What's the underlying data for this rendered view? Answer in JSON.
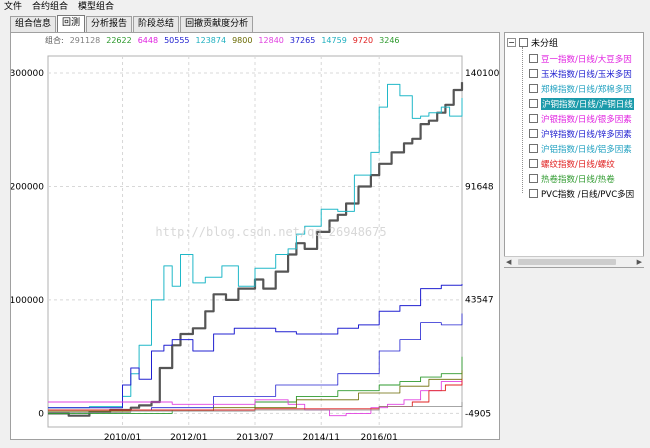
{
  "menu": [
    "文件",
    "合约组合",
    "模型组合"
  ],
  "tabs": [
    "组合信息",
    "回测",
    "分析报告",
    "阶段总结",
    "回撤贡献度分析"
  ],
  "active_tab": 1,
  "legend": {
    "label": "组合:",
    "values": [
      "291128",
      "22622",
      "6448",
      "50555",
      "123874",
      "9800",
      "12840",
      "37265",
      "14759",
      "9720",
      "3246"
    ],
    "colors": [
      "#808080",
      "#2e9a2e",
      "#e020e0",
      "#2020d0",
      "#20b0c0",
      "#6a6a00",
      "#e040e0",
      "#2020d0",
      "#20b0c0",
      "#e02020",
      "#2e9a2e"
    ]
  },
  "watermark": "http://blog.csdn.net/qq_26948675",
  "tree": {
    "root_label": "未分组",
    "toggle": "−",
    "items": [
      {
        "label": "豆一指数/日线/大豆多因",
        "color": "#e020e0",
        "selected": false
      },
      {
        "label": "玉米指数/日线/玉米多因",
        "color": "#2020d0",
        "selected": false
      },
      {
        "label": "郑棉指数/日线/郑棉多因",
        "color": "#20a0c0",
        "selected": false
      },
      {
        "label": "沪铜指数/日线/沪铜日线",
        "color": "#000000",
        "selected": true
      },
      {
        "label": "沪银指数/日线/银多因素",
        "color": "#e020e0",
        "selected": false
      },
      {
        "label": "沪锌指数/日线/锌多因素",
        "color": "#2020d0",
        "selected": false
      },
      {
        "label": "沪铝指数/日线/铝多因素",
        "color": "#20a0c0",
        "selected": false
      },
      {
        "label": "螺纹指数/日线/螺纹",
        "color": "#e02020",
        "selected": false
      },
      {
        "label": "热卷指数/日线/热卷",
        "color": "#2e9a2e",
        "selected": false
      },
      {
        "label": "PVC指数 /日线/PVC多因",
        "color": "#000000",
        "selected": false
      }
    ]
  },
  "scroll": {
    "left": "◀",
    "right": "▶"
  },
  "chart_data": {
    "type": "line",
    "left_axis": {
      "ticks": [
        0,
        100000,
        200000,
        300000
      ],
      "labels": [
        "0",
        "100000",
        "200000",
        "300000"
      ]
    },
    "right_axis": {
      "ticks": [
        -4905,
        43547,
        91648,
        140100
      ],
      "labels": [
        "-4905",
        "43547",
        "91648",
        "140100"
      ]
    },
    "x_ticks": [
      "2010/01",
      "2012/01",
      "2013/07",
      "2014/11",
      "2016/01"
    ],
    "x_range": [
      "2008/12",
      "2017/06"
    ],
    "left_range": [
      -12000,
      315000
    ],
    "grid": true,
    "series": [
      {
        "color": "#555555",
        "width": 2.2,
        "x": [
          0,
          0.05,
          0.1,
          0.15,
          0.2,
          0.22,
          0.25,
          0.27,
          0.3,
          0.32,
          0.35,
          0.38,
          0.4,
          0.43,
          0.46,
          0.5,
          0.52,
          0.55,
          0.58,
          0.6,
          0.62,
          0.65,
          0.68,
          0.7,
          0.72,
          0.75,
          0.78,
          0.8,
          0.83,
          0.86,
          0.88,
          0.9,
          0.92,
          0.94,
          0.96,
          0.98,
          1.0
        ],
        "y": [
          0,
          -2000,
          1000,
          3000,
          5000,
          7000,
          10000,
          40000,
          60000,
          70000,
          75000,
          90000,
          105000,
          100000,
          110000,
          118000,
          110000,
          125000,
          140000,
          150000,
          145000,
          160000,
          170000,
          175000,
          185000,
          200000,
          210000,
          220000,
          230000,
          238000,
          242000,
          255000,
          258000,
          265000,
          272000,
          285000,
          292000
        ]
      },
      {
        "color": "#20b8c8",
        "width": 1,
        "x": [
          0,
          0.1,
          0.18,
          0.2,
          0.22,
          0.25,
          0.28,
          0.3,
          0.32,
          0.35,
          0.38,
          0.42,
          0.46,
          0.5,
          0.55,
          0.58,
          0.6,
          0.62,
          0.66,
          0.7,
          0.74,
          0.78,
          0.8,
          0.82,
          0.85,
          0.88,
          0.9,
          0.92,
          0.95,
          0.97,
          1.0
        ],
        "y": [
          5000,
          6000,
          15000,
          35000,
          60000,
          100000,
          130000,
          112000,
          140000,
          115000,
          120000,
          130000,
          112000,
          128000,
          140000,
          145000,
          158000,
          165000,
          180000,
          178000,
          210000,
          230000,
          270000,
          290000,
          280000,
          260000,
          262000,
          265000,
          270000,
          262000,
          278000
        ]
      },
      {
        "color": "#2020d0",
        "width": 1,
        "x": [
          0,
          0.18,
          0.2,
          0.22,
          0.25,
          0.28,
          0.3,
          0.35,
          0.4,
          0.45,
          0.55,
          0.6,
          0.7,
          0.75,
          0.8,
          0.85,
          0.9,
          0.95,
          1.0
        ],
        "y": [
          5000,
          25000,
          40000,
          30000,
          55000,
          60000,
          65000,
          55000,
          70000,
          75000,
          72000,
          70000,
          75000,
          78000,
          90000,
          95000,
          110000,
          113000,
          114000
        ]
      },
      {
        "color": "#2020d0",
        "width": 0.8,
        "x": [
          0,
          0.25,
          0.4,
          0.55,
          0.7,
          0.8,
          0.85,
          0.9,
          0.95,
          1.0
        ],
        "y": [
          3000,
          5000,
          15000,
          25000,
          35000,
          55000,
          65000,
          80000,
          78000,
          88000
        ]
      },
      {
        "color": "#2e9a2e",
        "width": 0.9,
        "x": [
          0,
          0.3,
          0.5,
          0.6,
          0.7,
          0.8,
          0.85,
          0.9,
          0.95,
          1.0
        ],
        "y": [
          0,
          3000,
          10000,
          15000,
          20000,
          25000,
          28000,
          32000,
          35000,
          50000
        ]
      },
      {
        "color": "#e040e0",
        "width": 0.9,
        "x": [
          0,
          0.3,
          0.5,
          0.58,
          0.62,
          0.68,
          0.72,
          0.78,
          0.82,
          0.86,
          0.9,
          0.95,
          1.0
        ],
        "y": [
          10000,
          8000,
          12000,
          8000,
          3000,
          -2000,
          0,
          5000,
          8000,
          12000,
          20000,
          28000,
          25000
        ]
      },
      {
        "color": "#6a6a00",
        "width": 0.8,
        "x": [
          0,
          0.4,
          0.6,
          0.75,
          0.85,
          0.92,
          1.0
        ],
        "y": [
          2000,
          5000,
          12000,
          18000,
          24000,
          30000,
          38000
        ]
      },
      {
        "color": "#e02020",
        "width": 0.9,
        "x": [
          0,
          0.5,
          0.8,
          0.88,
          0.92,
          0.96,
          1.0
        ],
        "y": [
          3000,
          4000,
          6000,
          10000,
          20000,
          25000,
          30000
        ]
      },
      {
        "color": "#888888",
        "width": 0.8,
        "x": [
          0,
          0.2,
          0.5,
          0.8,
          1.0
        ],
        "y": [
          1000,
          2000,
          3000,
          6000,
          10000
        ]
      }
    ]
  }
}
